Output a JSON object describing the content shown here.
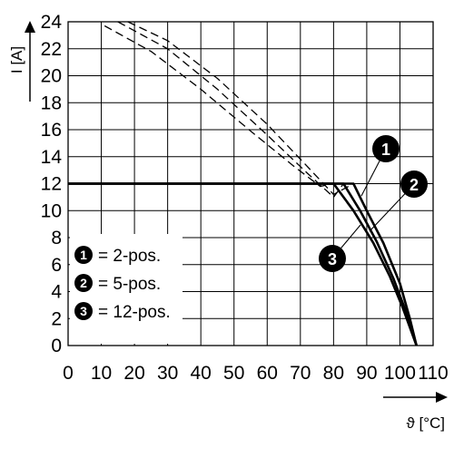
{
  "chart_data": {
    "type": "line",
    "title": "",
    "xlabel": "ϑ [°C]",
    "ylabel": "I [A]",
    "xlim": [
      0,
      110
    ],
    "ylim": [
      0,
      24
    ],
    "x_ticks": [
      "0",
      "10",
      "20",
      "30",
      "40",
      "50",
      "60",
      "70",
      "80",
      "90",
      "100",
      "110"
    ],
    "y_ticks": [
      "0",
      "2",
      "4",
      "6",
      "8",
      "10",
      "12",
      "14",
      "16",
      "18",
      "20",
      "22",
      "24"
    ],
    "grid": true,
    "legend_position": "bottom-left",
    "series": [
      {
        "marker": "1",
        "name": "= 2-pos.",
        "color": "#000000",
        "derating_dashed": {
          "x": [
            18,
            30,
            45,
            60,
            72,
            80,
            86
          ],
          "y": [
            24,
            22.6,
            19.8,
            16.4,
            13.3,
            11.2,
            12
          ]
        },
        "solid": {
          "x": [
            0,
            86,
            90,
            95,
            100,
            103,
            105
          ],
          "y": [
            12,
            12,
            10,
            7.6,
            4.6,
            2,
            0
          ]
        }
      },
      {
        "marker": "2",
        "name": "= 5-pos.",
        "color": "#000000",
        "derating_dashed": {
          "x": [
            15,
            30,
            45,
            60,
            72,
            80,
            83
          ],
          "y": [
            24,
            22.0,
            19.0,
            15.6,
            12.8,
            11.0,
            12
          ]
        },
        "solid": {
          "x": [
            0,
            83,
            88,
            93,
            98,
            102,
            105
          ],
          "y": [
            12,
            12,
            10,
            7.7,
            5.0,
            2.4,
            0
          ]
        }
      },
      {
        "marker": "3",
        "name": "= 12-pos.",
        "color": "#000000",
        "derating_dashed": {
          "x": [
            11,
            25,
            40,
            55,
            68,
            76,
            80
          ],
          "y": [
            23.7,
            21.8,
            19.0,
            15.9,
            13.3,
            11.8,
            12
          ]
        },
        "solid": {
          "x": [
            0,
            80,
            86,
            92,
            97,
            101,
            105
          ],
          "y": [
            12,
            12,
            10,
            7.6,
            5.1,
            2.7,
            0
          ]
        }
      }
    ]
  }
}
